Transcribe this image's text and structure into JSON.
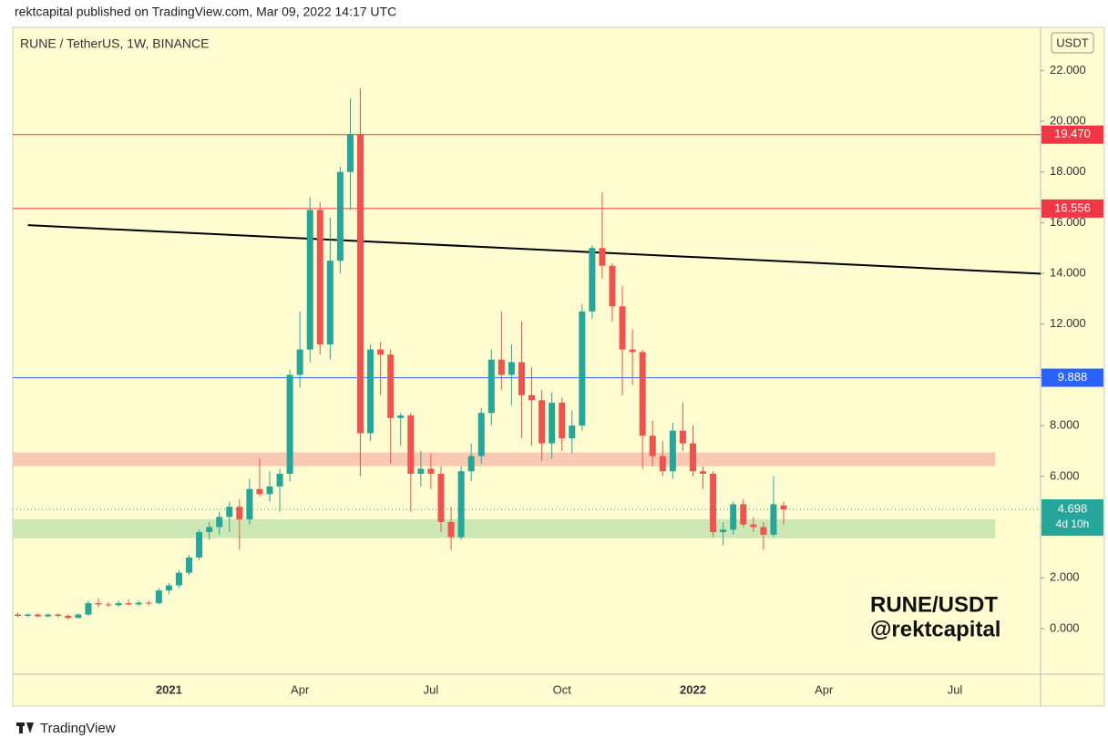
{
  "header": "rektcapital published on TradingView.com, Mar 09, 2022 14:17 UTC",
  "footer": "TradingView",
  "chart_data": {
    "type": "candlestick",
    "title": "RUNE / TetherUS, 1W, BINANCE",
    "currency": "USDT",
    "watermark": [
      "RUNE/USDT",
      "@rektcapital"
    ],
    "countdown": "4d 10h",
    "up_color": "#26a69a",
    "down_color": "#ef5350",
    "categories": [
      null,
      null,
      null,
      null,
      null,
      null,
      null,
      null,
      null,
      null,
      null,
      null,
      null,
      null,
      null,
      "2021",
      null,
      null,
      null,
      null,
      null,
      null,
      null,
      null,
      null,
      null,
      null,
      null,
      "Apr",
      null,
      null,
      null,
      null,
      null,
      null,
      null,
      null,
      null,
      null,
      null,
      null,
      "Jul",
      null,
      null,
      null,
      null,
      null,
      null,
      null,
      null,
      null,
      null,
      null,
      null,
      "Oct",
      null,
      null,
      null,
      null,
      null,
      null,
      null,
      null,
      null,
      null,
      null,
      null,
      "2022",
      null,
      null,
      null,
      null,
      null,
      null,
      null,
      null,
      null,
      null,
      null,
      null,
      "Apr",
      null,
      null,
      null,
      null,
      null,
      null,
      null,
      null,
      null,
      null,
      null,
      null,
      "Jul",
      null,
      null,
      null,
      null,
      null,
      null,
      null,
      null
    ],
    "open": [
      0.55,
      0.5,
      0.55,
      0.48,
      0.55,
      0.5,
      0.42,
      0.55,
      1.0,
      0.95,
      0.92,
      1.0,
      0.95,
      1.02,
      1.0,
      1.5,
      1.7,
      2.2,
      2.8,
      3.8,
      4.0,
      4.4,
      4.8,
      4.3,
      5.5,
      5.3,
      5.6,
      6.1,
      10.0,
      11.0,
      16.5,
      11.2,
      14.5,
      18.0,
      19.5,
      7.7,
      11.0,
      10.8,
      8.3,
      8.4,
      6.1,
      6.3,
      6.1,
      4.2,
      3.6,
      6.2,
      6.8,
      8.5,
      10.6,
      10.0,
      10.5,
      9.2,
      9.0,
      7.3,
      8.9,
      7.5,
      8.0,
      12.5,
      15.0,
      14.3,
      12.7,
      11.0,
      10.9,
      7.6,
      6.8,
      6.2,
      7.8,
      7.3,
      6.2,
      6.1,
      3.8,
      3.9,
      4.9,
      4.1,
      4.0,
      3.7,
      4.85,
      null,
      null,
      null,
      null,
      null,
      null,
      null,
      null,
      null,
      null,
      null,
      null,
      null,
      null,
      null,
      null,
      null,
      null,
      null,
      null,
      null,
      null,
      null,
      null,
      null
    ],
    "high": [
      0.62,
      0.6,
      0.6,
      0.6,
      0.6,
      0.55,
      0.6,
      1.1,
      1.2,
      1.05,
      1.1,
      1.15,
      1.1,
      1.1,
      1.6,
      1.8,
      2.3,
      2.9,
      3.9,
      4.2,
      4.6,
      5.0,
      5.1,
      5.9,
      6.7,
      6.2,
      6.3,
      10.2,
      12.5,
      17.0,
      16.8,
      16.2,
      18.2,
      20.9,
      21.3,
      11.2,
      11.3,
      11.0,
      8.5,
      8.5,
      7.0,
      6.9,
      6.4,
      4.8,
      6.4,
      7.3,
      8.7,
      11.0,
      12.5,
      11.2,
      12.1,
      10.3,
      9.4,
      9.3,
      9.1,
      8.6,
      12.8,
      15.1,
      17.2,
      14.4,
      13.5,
      11.8,
      11.0,
      8.2,
      7.4,
      8.1,
      8.9,
      8.0,
      6.4,
      6.2,
      4.2,
      5.0,
      5.1,
      4.4,
      4.2,
      6.0,
      5.0,
      null,
      null,
      null,
      null,
      null,
      null,
      null,
      null,
      null,
      null,
      null,
      null,
      null,
      null,
      null,
      null,
      null,
      null,
      null,
      null,
      null,
      null,
      null,
      null,
      null
    ],
    "low": [
      0.45,
      0.45,
      0.45,
      0.45,
      0.45,
      0.35,
      0.4,
      0.5,
      0.85,
      0.85,
      0.85,
      0.9,
      0.88,
      0.9,
      0.95,
      1.35,
      1.6,
      2.1,
      2.7,
      3.5,
      3.7,
      3.8,
      3.1,
      4.1,
      5.2,
      5.0,
      4.6,
      5.8,
      9.5,
      10.5,
      10.8,
      10.6,
      14.0,
      16.5,
      6.0,
      7.4,
      9.2,
      6.5,
      7.2,
      4.6,
      5.6,
      5.5,
      3.8,
      3.1,
      3.5,
      5.8,
      6.5,
      8.0,
      9.4,
      8.8,
      7.5,
      7.2,
      6.6,
      6.7,
      7.0,
      6.9,
      7.8,
      12.2,
      13.8,
      12.1,
      9.2,
      9.6,
      6.3,
      6.4,
      6.0,
      5.9,
      7.0,
      6.0,
      5.5,
      3.6,
      3.3,
      3.7,
      4.0,
      3.8,
      3.1,
      3.6,
      4.1,
      null,
      null,
      null,
      null,
      null,
      null,
      null,
      null,
      null,
      null,
      null,
      null,
      null,
      null,
      null,
      null,
      null,
      null,
      null,
      null,
      null,
      null,
      null,
      null,
      null
    ],
    "close": [
      0.5,
      0.55,
      0.48,
      0.55,
      0.5,
      0.42,
      0.55,
      1.0,
      0.95,
      0.92,
      1.0,
      0.95,
      1.02,
      1.0,
      1.5,
      1.7,
      2.2,
      2.8,
      3.8,
      4.0,
      4.4,
      4.8,
      4.3,
      5.5,
      5.3,
      5.6,
      6.1,
      10.0,
      11.0,
      16.5,
      11.2,
      14.5,
      18.0,
      19.5,
      7.7,
      11.0,
      10.8,
      8.3,
      8.4,
      6.1,
      6.3,
      6.1,
      4.2,
      3.6,
      6.2,
      6.8,
      8.5,
      10.6,
      10.0,
      10.5,
      9.2,
      9.0,
      7.3,
      8.9,
      7.5,
      8.0,
      12.5,
      15.0,
      14.3,
      12.7,
      11.0,
      10.9,
      7.6,
      6.8,
      6.2,
      7.8,
      7.3,
      6.2,
      6.1,
      3.8,
      3.9,
      4.9,
      4.1,
      4.0,
      3.7,
      4.9,
      4.698,
      null,
      null,
      null,
      null,
      null,
      null,
      null,
      null,
      null,
      null,
      null,
      null,
      null,
      null,
      null,
      null,
      null,
      null,
      null,
      null,
      null,
      null,
      null,
      null,
      null
    ],
    "ylim": [
      -1.8,
      23.7
    ],
    "yticks": [
      {
        "value": 0,
        "label": "0.000"
      },
      {
        "value": 2,
        "label": "2.000"
      },
      {
        "value": 4,
        "label": "4.000"
      },
      {
        "value": 6,
        "label": "6.000"
      },
      {
        "value": 8,
        "label": "8.000"
      },
      {
        "value": 10,
        "label": "10.000"
      },
      {
        "value": 12,
        "label": "12.000"
      },
      {
        "value": 14,
        "label": "14.000"
      },
      {
        "value": 16,
        "label": "16.000"
      },
      {
        "value": 18,
        "label": "18.000"
      },
      {
        "value": 20,
        "label": "20.000"
      },
      {
        "value": 22,
        "label": "22.000"
      }
    ],
    "levels": [
      {
        "value": 19.47,
        "label": "19.470",
        "color": "#f23645"
      },
      {
        "value": 16.556,
        "label": "16.556",
        "color": "#f23645"
      },
      {
        "value": 9.888,
        "label": "9.888",
        "color": "#2962ff"
      }
    ],
    "zones": [
      {
        "y": [
          6.4,
          6.94
        ],
        "x": [
          0,
          97
        ],
        "color": "#f8c3b0"
      },
      {
        "y": [
          3.56,
          4.31
        ],
        "x": [
          0,
          97
        ],
        "color": "#c8e6b0"
      }
    ],
    "trendline": {
      "x": [
        1,
        101
      ],
      "y": [
        15.9,
        14.0
      ],
      "color": "#000000"
    }
  }
}
